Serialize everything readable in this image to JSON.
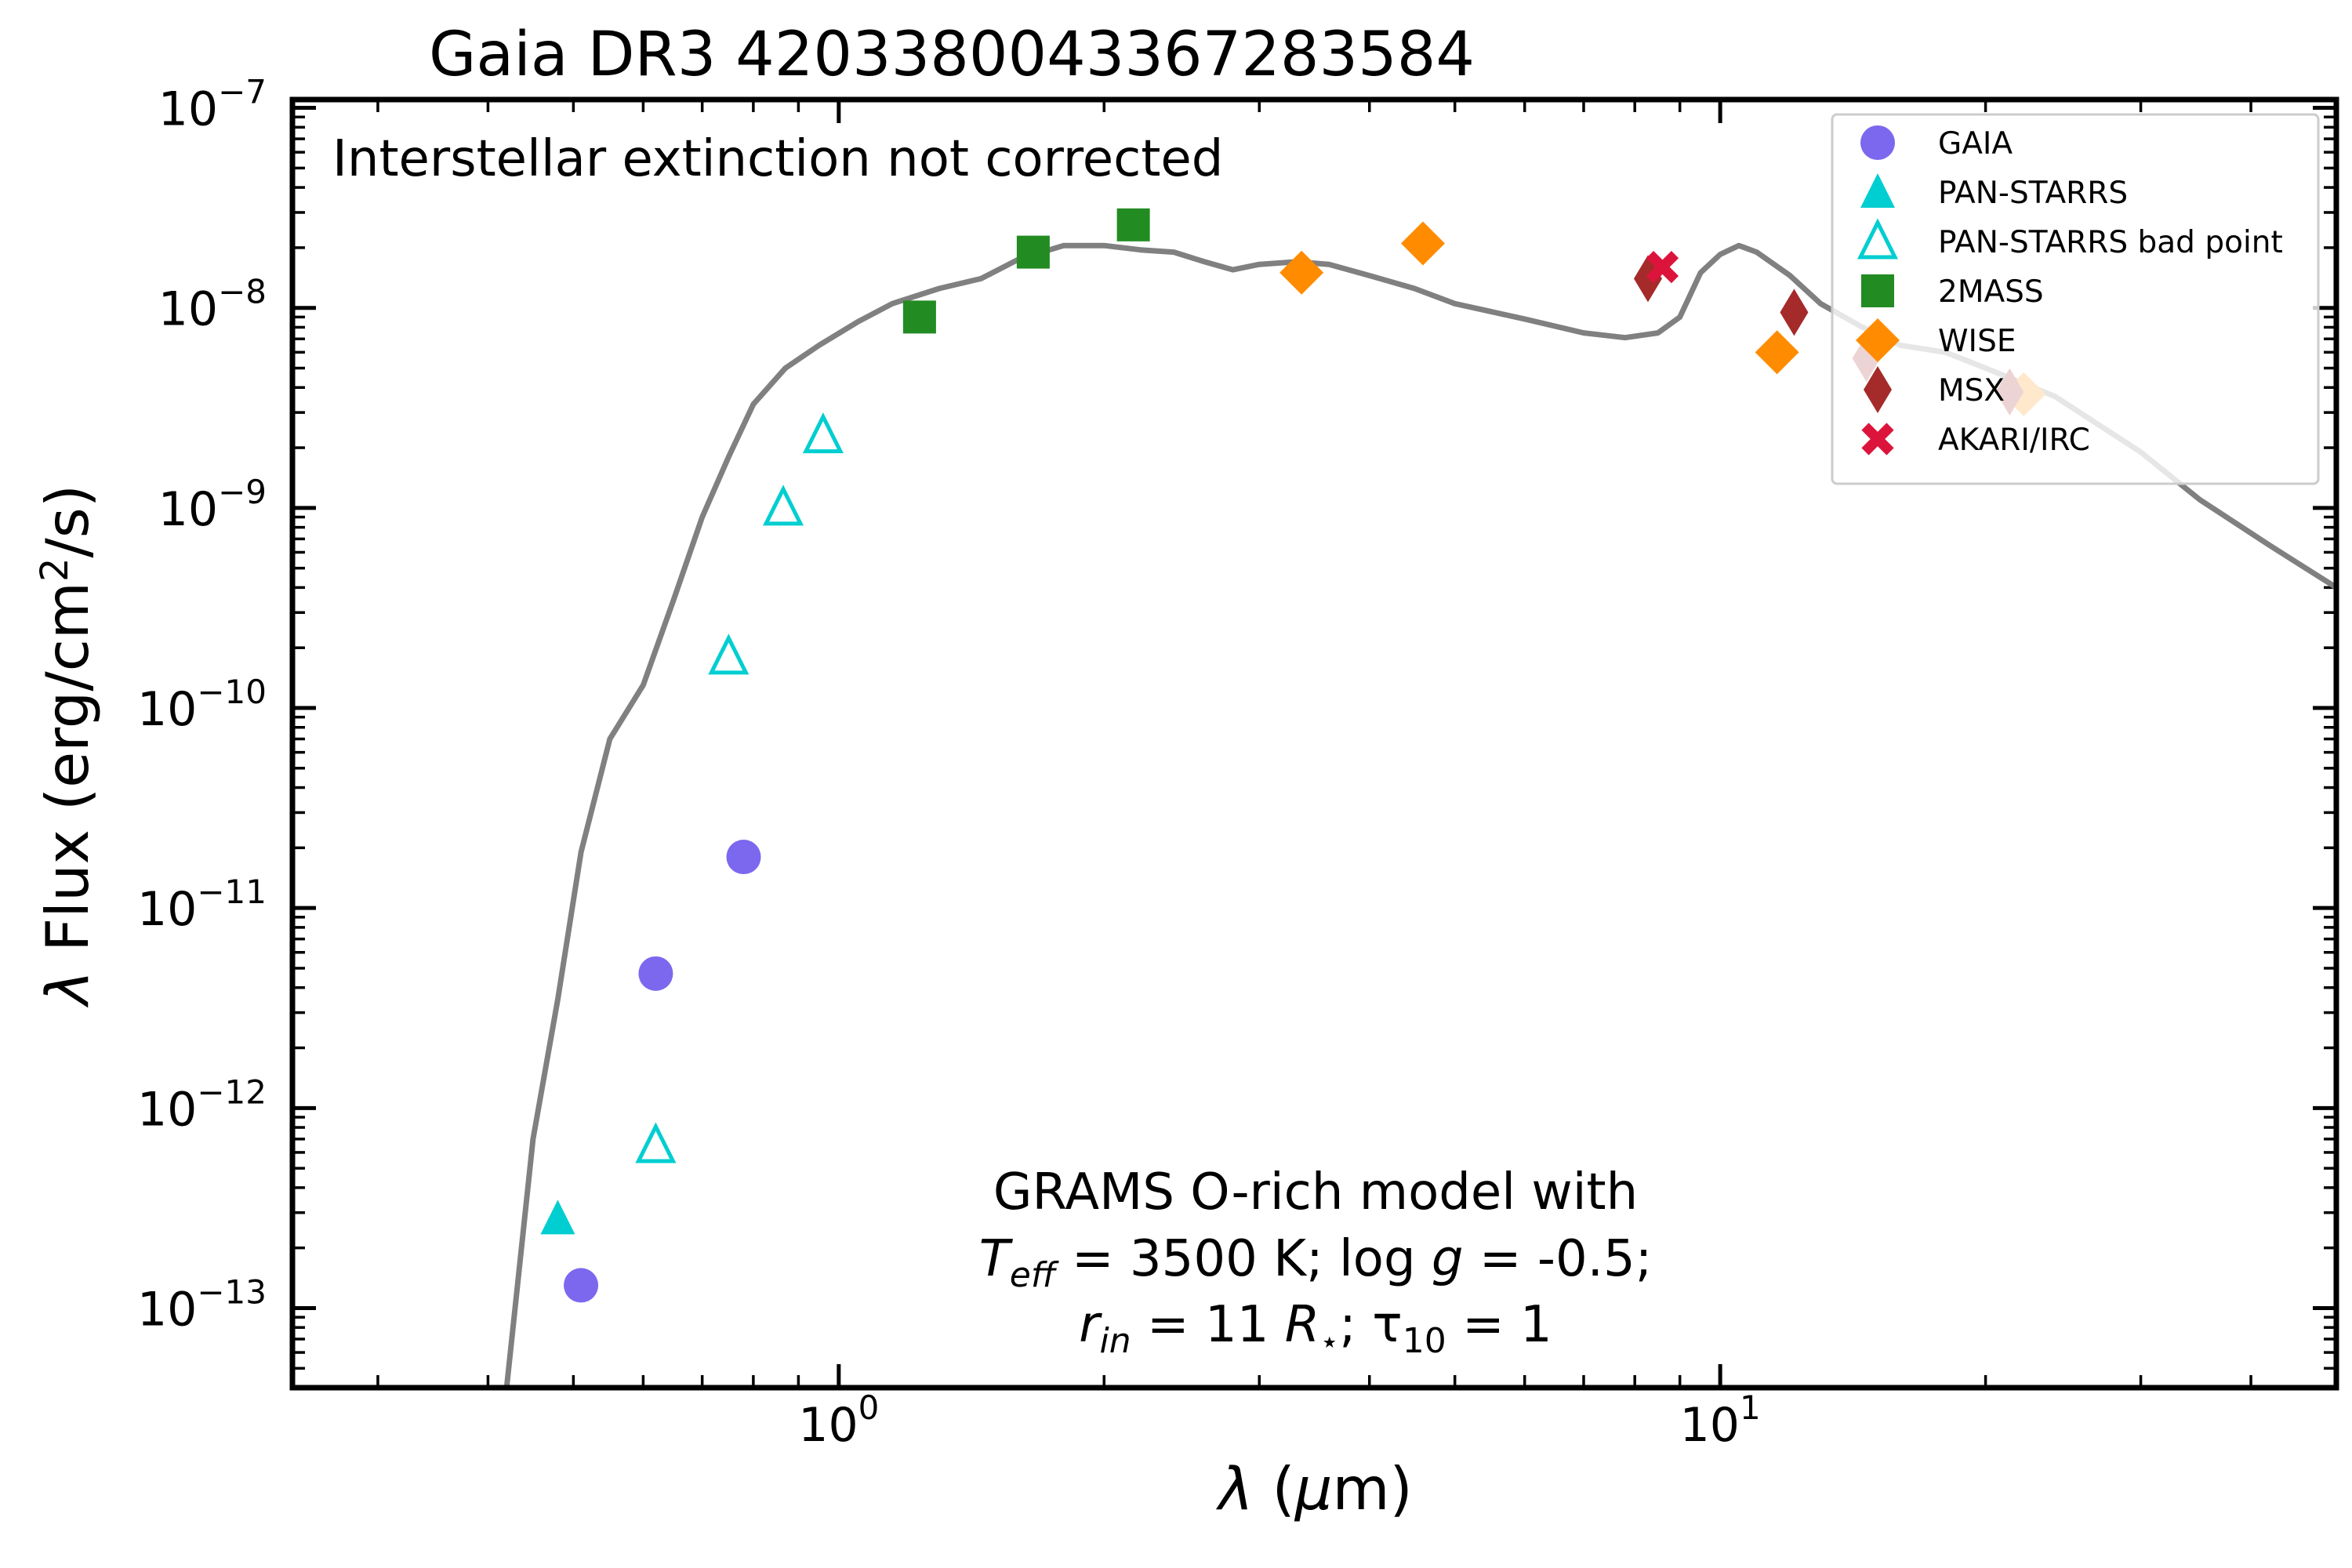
{
  "chart_data": {
    "type": "scatter",
    "title": "Gaia DR3 4203380043367283584",
    "xlabel": "λ (μm)",
    "ylabel": "λ Flux (erg/cm²/s)",
    "xscale": "log",
    "yscale": "log",
    "xlim": [
      0.24,
      50
    ],
    "ylim": [
      4e-14,
      1.1e-07
    ],
    "x_ticks": [
      {
        "value": 1,
        "base": "10",
        "exp": "0"
      },
      {
        "value": 10,
        "base": "10",
        "exp": "1"
      }
    ],
    "y_ticks": [
      {
        "value": 1e-07,
        "base": "10",
        "exp": "−7"
      },
      {
        "value": 1e-08,
        "base": "10",
        "exp": "−8"
      },
      {
        "value": 1e-09,
        "base": "10",
        "exp": "−9"
      },
      {
        "value": 1e-10,
        "base": "10",
        "exp": "−10"
      },
      {
        "value": 1e-11,
        "base": "10",
        "exp": "−11"
      },
      {
        "value": 1e-12,
        "base": "10",
        "exp": "−12"
      },
      {
        "value": 1e-13,
        "base": "10",
        "exp": "−13"
      }
    ],
    "annotation_top": "Interstellar extinction not corrected",
    "model_text": {
      "line1": "GRAMS O-rich model with",
      "teff_sym": "T",
      "teff_sub": "eff",
      "teff_rest": " = 3500 K; log ",
      "logg_sym": "g",
      "logg_rest": " = -0.5;",
      "rin_sym": "r",
      "rin_sub": "in",
      "rin_rest": " = 11 ",
      "rstar_sym": "R",
      "rstar_sub": "⋆",
      "tau_text": "; τ",
      "tau_sub": "10",
      "tau_rest": " = 1"
    },
    "legend_position": "top-right",
    "grid": false,
    "model": {
      "color": "#808080",
      "points": [
        [
          0.42,
          4e-14
        ],
        [
          0.45,
          7e-13
        ],
        [
          0.48,
          3.5e-12
        ],
        [
          0.51,
          1.9e-11
        ],
        [
          0.55,
          7e-11
        ],
        [
          0.6,
          1.3e-10
        ],
        [
          0.65,
          3.5e-10
        ],
        [
          0.7,
          9e-10
        ],
        [
          0.75,
          1.8e-09
        ],
        [
          0.8,
          3.3e-09
        ],
        [
          0.87,
          5e-09
        ],
        [
          0.95,
          6.5e-09
        ],
        [
          1.05,
          8.5e-09
        ],
        [
          1.15,
          1.05e-08
        ],
        [
          1.3,
          1.25e-08
        ],
        [
          1.45,
          1.4e-08
        ],
        [
          1.6,
          1.75e-08
        ],
        [
          1.8,
          2.05e-08
        ],
        [
          2.0,
          2.05e-08
        ],
        [
          2.2,
          1.95e-08
        ],
        [
          2.4,
          1.9e-08
        ],
        [
          2.6,
          1.7e-08
        ],
        [
          2.8,
          1.55e-08
        ],
        [
          3.0,
          1.65e-08
        ],
        [
          3.3,
          1.7e-08
        ],
        [
          3.6,
          1.65e-08
        ],
        [
          4.0,
          1.45e-08
        ],
        [
          4.5,
          1.25e-08
        ],
        [
          5.0,
          1.05e-08
        ],
        [
          6.0,
          8.8e-09
        ],
        [
          7.0,
          7.5e-09
        ],
        [
          7.8,
          7.1e-09
        ],
        [
          8.5,
          7.5e-09
        ],
        [
          9.0,
          9e-09
        ],
        [
          9.5,
          1.5e-08
        ],
        [
          10.0,
          1.85e-08
        ],
        [
          10.5,
          2.05e-08
        ],
        [
          11.0,
          1.9e-08
        ],
        [
          12.0,
          1.45e-08
        ],
        [
          13.0,
          1.05e-08
        ],
        [
          14.5,
          8e-09
        ],
        [
          16.0,
          6.5e-09
        ],
        [
          18.0,
          6e-09
        ],
        [
          20.0,
          5e-09
        ],
        [
          24.0,
          3.6e-09
        ],
        [
          30.0,
          1.9e-09
        ],
        [
          35.0,
          1.1e-09
        ],
        [
          42.0,
          6.5e-10
        ],
        [
          50.0,
          4e-10
        ]
      ]
    },
    "series": [
      {
        "name": "GAIA",
        "marker": "circle",
        "color": "#7B68EE",
        "filled": true,
        "points": [
          [
            0.51,
            1.3e-13
          ],
          [
            0.62,
            4.7e-12
          ],
          [
            0.78,
            1.8e-11
          ]
        ]
      },
      {
        "name": "PAN-STARRS",
        "marker": "triangle",
        "color": "#00CED1",
        "filled": true,
        "points": [
          [
            0.48,
            2.8e-13
          ]
        ]
      },
      {
        "name": "PAN-STARRS bad point",
        "marker": "triangle",
        "color": "#00CED1",
        "filled": false,
        "points": [
          [
            0.62,
            6.5e-13
          ],
          [
            0.75,
            1.8e-10
          ],
          [
            0.865,
            1e-09
          ],
          [
            0.96,
            2.3e-09
          ]
        ]
      },
      {
        "name": "2MASS",
        "marker": "square",
        "color": "#228B22",
        "filled": true,
        "points": [
          [
            1.235,
            9e-09
          ],
          [
            1.662,
            1.9e-08
          ],
          [
            2.159,
            2.6e-08
          ]
        ]
      },
      {
        "name": "WISE",
        "marker": "diamond",
        "color": "#FF8C00",
        "filled": true,
        "points": [
          [
            3.35,
            1.5e-08
          ],
          [
            4.6,
            2.1e-08
          ],
          [
            11.6,
            6e-09
          ],
          [
            22.1,
            3.7e-09
          ]
        ]
      },
      {
        "name": "MSX",
        "marker": "thin-diamond",
        "color": "#A52A2A",
        "filled": true,
        "points": [
          [
            8.28,
            1.4e-08
          ],
          [
            12.13,
            9.5e-09
          ],
          [
            14.65,
            5.6e-09
          ],
          [
            21.3,
            3.8e-09
          ]
        ]
      },
      {
        "name": "AKARI/IRC",
        "marker": "x",
        "color": "#DC143C",
        "filled": true,
        "points": [
          [
            8.6,
            1.6e-08
          ]
        ]
      }
    ]
  }
}
